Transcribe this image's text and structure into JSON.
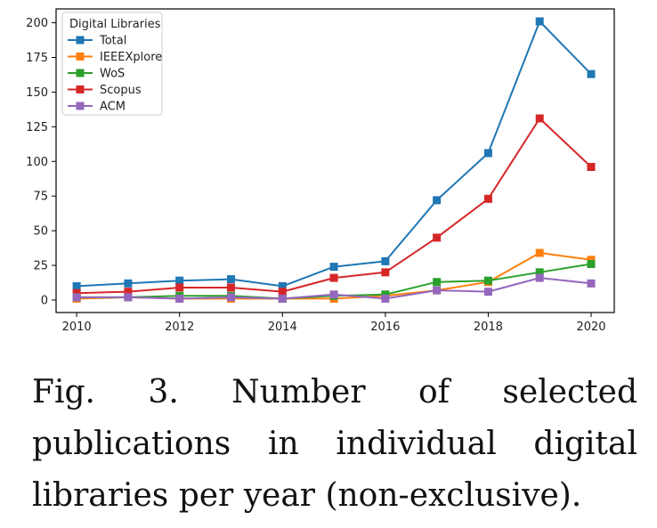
{
  "chart_data": {
    "type": "line",
    "x": [
      2010,
      2011,
      2012,
      2013,
      2014,
      2015,
      2016,
      2017,
      2018,
      2019,
      2020
    ],
    "xticks": [
      2010,
      2012,
      2014,
      2016,
      2018,
      2020
    ],
    "yticks": [
      0,
      25,
      50,
      75,
      100,
      125,
      150,
      175,
      200
    ],
    "xlim": [
      2009.6,
      2020.45
    ],
    "ylim": [
      -9,
      210
    ],
    "grid": false,
    "marker": "square",
    "legend": {
      "title": "Digital Libraries",
      "position": "top-left"
    },
    "series": [
      {
        "name": "Total",
        "color": "#1f77b4",
        "values": [
          10,
          12,
          14,
          15,
          10,
          24,
          28,
          72,
          106,
          201,
          163
        ]
      },
      {
        "name": "IEEEXplore",
        "color": "#ff7f0e",
        "values": [
          1,
          2,
          1,
          1,
          1,
          1,
          3,
          7,
          13,
          34,
          29
        ]
      },
      {
        "name": "WoS",
        "color": "#2ca02c",
        "values": [
          2,
          2,
          3,
          3,
          1,
          3,
          4,
          13,
          14,
          20,
          26
        ]
      },
      {
        "name": "Scopus",
        "color": "#d62728",
        "values": [
          5,
          6,
          9,
          9,
          6,
          16,
          20,
          45,
          73,
          131,
          96
        ]
      },
      {
        "name": "ACM",
        "color": "#9467bd",
        "values": [
          2,
          2,
          1,
          2,
          1,
          4,
          1,
          7,
          6,
          16,
          12
        ]
      }
    ]
  },
  "caption": "Fig. 3. Number of selected publications in individual digital libraries per year (non-exclusive)."
}
